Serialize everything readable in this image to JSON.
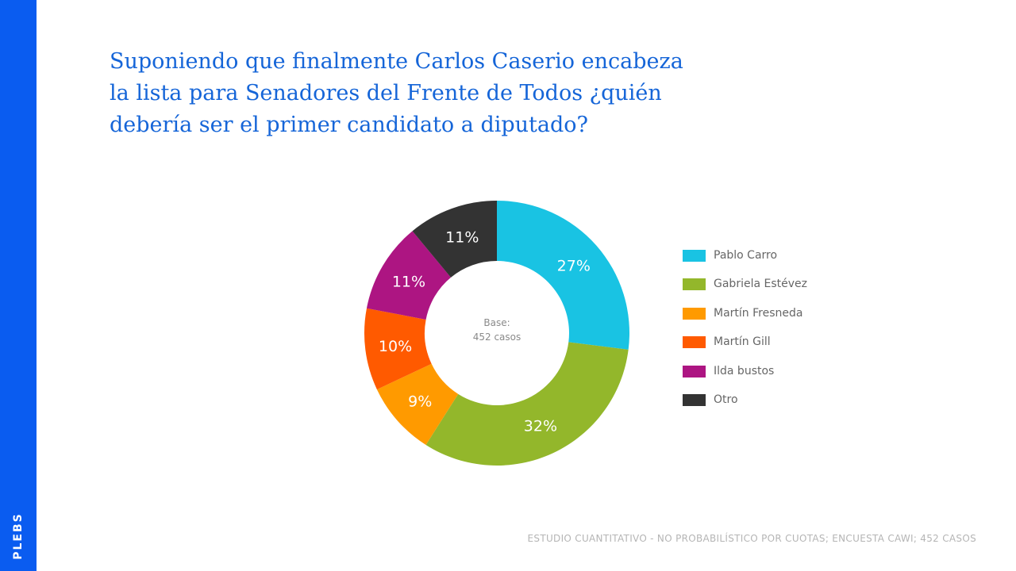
{
  "brand": {
    "name": "PLEBS",
    "color": "#0a5cf0"
  },
  "title": {
    "line1": "Suponiendo que finalmente Carlos Caserio encabeza",
    "line2": "la lista para Senadores del Frente de Todos ¿quién",
    "line3": "debería ser el primer candidato a diputado?"
  },
  "chart_data": {
    "type": "pie",
    "style": "donut",
    "title": "Suponiendo que finalmente Carlos Caserio encabeza la lista para Senadores del Frente de Todos ¿quién debería ser el primer candidato a diputado?",
    "categories": [
      "Pablo Carro",
      "Gabriela Estévez",
      "Martín Fresneda",
      "Martín Gill",
      "Ilda bustos",
      "Otro"
    ],
    "values": [
      27,
      32,
      9,
      10,
      11,
      11
    ],
    "labels": [
      "27%",
      "32%",
      "9%",
      "10%",
      "11%",
      "11%"
    ],
    "colors": [
      "#19c3e3",
      "#93b72b",
      "#ff9a00",
      "#ff5a00",
      "#ad1582",
      "#333333"
    ],
    "center_label": {
      "line1": "Base:",
      "line2": "452 casos"
    },
    "legend_position": "right"
  },
  "footnote": "ESTUDIO CUANTITATIVO - NO PROBABILÍSTICO POR CUOTAS; ENCUESTA CAWI; 452 CASOS"
}
